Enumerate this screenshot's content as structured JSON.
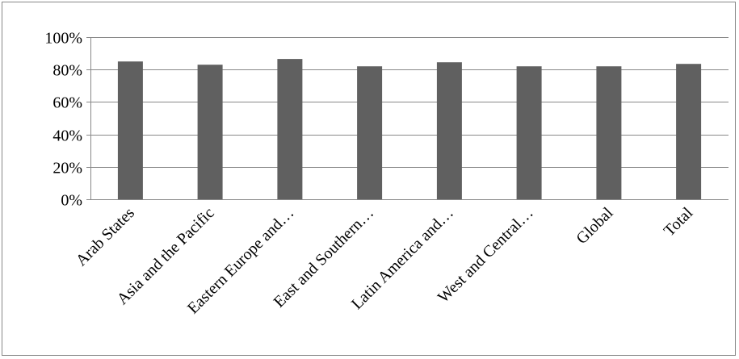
{
  "chart_data": {
    "type": "bar",
    "title": "",
    "xlabel": "",
    "ylabel": "",
    "categories": [
      "Arab States",
      "Asia and the Pacific",
      "Eastern Europe and…",
      "East and Southern…",
      "Latin America and…",
      "West and Central…",
      "Global",
      "Total"
    ],
    "values": [
      85,
      83,
      86.5,
      82,
      84.5,
      82,
      82,
      83.5
    ],
    "ylim": [
      0,
      100
    ],
    "yticks": [
      0,
      20,
      40,
      60,
      80,
      100
    ],
    "ytick_labels": [
      "0%",
      "20%",
      "40%",
      "60%",
      "80%",
      "100%"
    ],
    "grid": true,
    "legend": "none",
    "bar_color": "#606060",
    "grid_color": "#888888"
  }
}
